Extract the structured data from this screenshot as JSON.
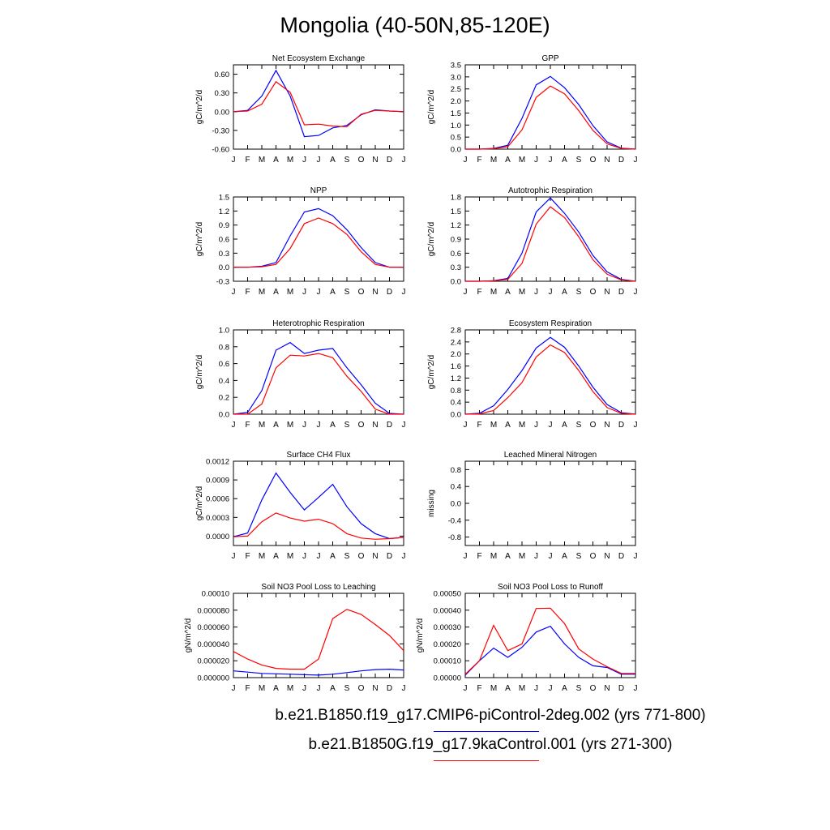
{
  "title": "Mongolia (40-50N,85-120E)",
  "months": [
    "J",
    "F",
    "M",
    "A",
    "M",
    "J",
    "J",
    "A",
    "S",
    "O",
    "N",
    "D",
    "J"
  ],
  "legend": [
    {
      "label": "b.e21.B1850.f19_g17.CMIP6-piControl-2deg.002 (yrs 771-800)",
      "color": "#0000ff"
    },
    {
      "label": "b.e21.B1850G.f19_g17.9kaControl.001 (yrs 271-300)",
      "color": "#ff0000"
    }
  ],
  "chart_data": [
    {
      "type": "line",
      "title": "Net Ecosystem Exchange",
      "ylabel": "gC/m^2/d",
      "ylim": [
        -0.6,
        0.75
      ],
      "yticks": [
        "-0.60",
        "-0.30",
        "0.00",
        "0.30",
        "0.60"
      ],
      "ytick_values": [
        -0.6,
        -0.3,
        0,
        0.3,
        0.6
      ],
      "series": [
        {
          "color": "#0000ff",
          "values": [
            0.0,
            0.02,
            0.25,
            0.66,
            0.25,
            -0.4,
            -0.38,
            -0.26,
            -0.22,
            -0.05,
            0.03,
            0.01,
            0.0
          ]
        },
        {
          "color": "#ff0000",
          "values": [
            0.0,
            0.01,
            0.12,
            0.48,
            0.31,
            -0.21,
            -0.2,
            -0.23,
            -0.24,
            -0.04,
            0.02,
            0.01,
            0.0
          ]
        }
      ]
    },
    {
      "type": "line",
      "title": "GPP",
      "ylabel": "gC/m^2/d",
      "ylim": [
        0,
        3.5
      ],
      "yticks": [
        "0.0",
        "0.5",
        "1.0",
        "1.5",
        "2.0",
        "2.5",
        "3.0",
        "3.5"
      ],
      "ytick_values": [
        0,
        0.5,
        1,
        1.5,
        2,
        2.5,
        3,
        3.5
      ],
      "series": [
        {
          "color": "#0000ff",
          "values": [
            0.0,
            0.0,
            0.03,
            0.16,
            1.28,
            2.67,
            3.02,
            2.55,
            1.85,
            0.98,
            0.3,
            0.04,
            0.0
          ]
        },
        {
          "color": "#ff0000",
          "values": [
            0.0,
            0.0,
            0.02,
            0.1,
            0.8,
            2.15,
            2.62,
            2.3,
            1.6,
            0.78,
            0.22,
            0.03,
            0.0
          ]
        }
      ]
    },
    {
      "type": "line",
      "title": "NPP",
      "ylabel": "gC/m^2/d",
      "ylim": [
        -0.3,
        1.5
      ],
      "yticks": [
        "-0.3",
        "0.0",
        "0.3",
        "0.6",
        "0.9",
        "1.2",
        "1.5"
      ],
      "ytick_values": [
        -0.3,
        0,
        0.3,
        0.6,
        0.9,
        1.2,
        1.5
      ],
      "series": [
        {
          "color": "#0000ff",
          "values": [
            0.0,
            0.0,
            0.02,
            0.1,
            0.67,
            1.18,
            1.25,
            1.1,
            0.8,
            0.42,
            0.1,
            0.0,
            0.0
          ]
        },
        {
          "color": "#ff0000",
          "values": [
            0.0,
            0.0,
            0.01,
            0.06,
            0.4,
            0.93,
            1.05,
            0.93,
            0.7,
            0.33,
            0.06,
            0.0,
            0.0
          ]
        }
      ]
    },
    {
      "type": "line",
      "title": "Autotrophic Respiration",
      "ylabel": "gC/m^2/d",
      "ylim": [
        0,
        1.8
      ],
      "yticks": [
        "0.0",
        "0.3",
        "0.6",
        "0.9",
        "1.2",
        "1.5",
        "1.8"
      ],
      "ytick_values": [
        0,
        0.3,
        0.6,
        0.9,
        1.2,
        1.5,
        1.8
      ],
      "series": [
        {
          "color": "#0000ff",
          "values": [
            0.0,
            0.0,
            0.01,
            0.06,
            0.6,
            1.48,
            1.78,
            1.45,
            1.05,
            0.55,
            0.2,
            0.04,
            0.0
          ]
        },
        {
          "color": "#ff0000",
          "values": [
            0.0,
            0.0,
            0.01,
            0.04,
            0.38,
            1.22,
            1.59,
            1.36,
            0.95,
            0.46,
            0.15,
            0.03,
            0.0
          ]
        }
      ]
    },
    {
      "type": "line",
      "title": "Heterotrophic Respiration",
      "ylabel": "gC/m^2/d",
      "ylim": [
        0,
        1.0
      ],
      "yticks": [
        "0.0",
        "0.2",
        "0.4",
        "0.6",
        "0.8",
        "1.0"
      ],
      "ytick_values": [
        0,
        0.2,
        0.4,
        0.6,
        0.8,
        1.0
      ],
      "series": [
        {
          "color": "#0000ff",
          "values": [
            0.0,
            0.02,
            0.28,
            0.76,
            0.85,
            0.72,
            0.76,
            0.78,
            0.55,
            0.35,
            0.13,
            0.01,
            0.0
          ]
        },
        {
          "color": "#ff0000",
          "values": [
            0.0,
            0.0,
            0.12,
            0.55,
            0.7,
            0.69,
            0.72,
            0.67,
            0.45,
            0.27,
            0.06,
            0.0,
            0.0
          ]
        }
      ]
    },
    {
      "type": "line",
      "title": "Ecosystem Respiration",
      "ylabel": "gC/m^2/d",
      "ylim": [
        0,
        2.8
      ],
      "yticks": [
        "0.0",
        "0.4",
        "0.8",
        "1.2",
        "1.6",
        "2.0",
        "2.4",
        "2.8"
      ],
      "ytick_values": [
        0,
        0.4,
        0.8,
        1.2,
        1.6,
        2.0,
        2.4,
        2.8
      ],
      "series": [
        {
          "color": "#0000ff",
          "values": [
            0.0,
            0.03,
            0.28,
            0.82,
            1.45,
            2.2,
            2.55,
            2.22,
            1.6,
            0.9,
            0.32,
            0.05,
            0.0
          ]
        },
        {
          "color": "#ff0000",
          "values": [
            0.0,
            0.01,
            0.12,
            0.55,
            1.05,
            1.9,
            2.3,
            2.05,
            1.45,
            0.75,
            0.22,
            0.03,
            0.0
          ]
        }
      ]
    },
    {
      "type": "line",
      "title": "Surface CH4 Flux",
      "ylabel": "gC/m^2/d",
      "ylim": [
        -0.00015,
        0.0012
      ],
      "yticks": [
        "0.0000",
        "0.0003",
        "0.0006",
        "0.0009",
        "0.0012"
      ],
      "ytick_values": [
        0,
        0.0003,
        0.0006,
        0.0009,
        0.0012
      ],
      "series": [
        {
          "color": "#0000ff",
          "values": [
            -1e-05,
            5e-05,
            0.00058,
            0.00101,
            0.0007,
            0.00042,
            0.00062,
            0.00083,
            0.00047,
            0.0002,
            4e-05,
            -4e-05,
            -2e-05
          ]
        },
        {
          "color": "#ff0000",
          "values": [
            -1e-05,
            0.0,
            0.00023,
            0.00037,
            0.00029,
            0.00024,
            0.00027,
            0.0002,
            4e-05,
            -3e-05,
            -5e-05,
            -4e-05,
            -2e-05
          ]
        }
      ]
    },
    {
      "type": "line",
      "title": "Leached Mineral Nitrogen",
      "ylabel": "missing",
      "ylim": [
        -1.0,
        1.0
      ],
      "yticks": [
        "-0.8",
        "-0.4",
        "0.0",
        "0.4",
        "0.8"
      ],
      "ytick_values": [
        -0.8,
        -0.4,
        0,
        0.4,
        0.8
      ],
      "series": []
    },
    {
      "type": "line",
      "title": "Soil NO3 Pool Loss to Leaching",
      "ylabel": "gN/m^2/d",
      "ylim": [
        0,
        0.0001
      ],
      "yticks": [
        "0.000000",
        "0.000020",
        "0.000040",
        "0.000060",
        "0.000080",
        "0.00010"
      ],
      "ytick_values": [
        0,
        2e-05,
        4e-05,
        6e-05,
        8e-05,
        0.0001
      ],
      "series": [
        {
          "color": "#0000ff",
          "values": [
            8e-06,
            6.5e-06,
            5e-06,
            4.5e-06,
            4e-06,
            3.5e-06,
            3e-06,
            4e-06,
            6e-06,
            8e-06,
            9.5e-06,
            1e-05,
            9e-06
          ]
        },
        {
          "color": "#ff0000",
          "values": [
            3.1e-05,
            2.2e-05,
            1.5e-05,
            1.1e-05,
            1e-05,
            1e-05,
            2.2e-05,
            7e-05,
            8.1e-05,
            7.5e-05,
            6.3e-05,
            5e-05,
            3.2e-05
          ]
        }
      ]
    },
    {
      "type": "line",
      "title": "Soil NO3 Pool Loss to Runoff",
      "ylabel": "gN/m^2/d",
      "ylim": [
        0,
        0.0005
      ],
      "yticks": [
        "0.00000",
        "0.00010",
        "0.00020",
        "0.00030",
        "0.00040",
        "0.00050"
      ],
      "ytick_values": [
        0,
        0.0001,
        0.0002,
        0.0003,
        0.0004,
        0.0005
      ],
      "series": [
        {
          "color": "#0000ff",
          "values": [
            1.5e-05,
            0.0001,
            0.000175,
            0.00012,
            0.00018,
            0.00027,
            0.000305,
            0.0002,
            0.00012,
            7e-05,
            6e-05,
            2e-05,
            2e-05
          ]
        },
        {
          "color": "#ff0000",
          "values": [
            2e-05,
            0.0001,
            0.00031,
            0.00016,
            0.0002,
            0.00041,
            0.000412,
            0.00032,
            0.00017,
            0.00011,
            6.5e-05,
            2.5e-05,
            2.5e-05
          ]
        }
      ]
    }
  ]
}
